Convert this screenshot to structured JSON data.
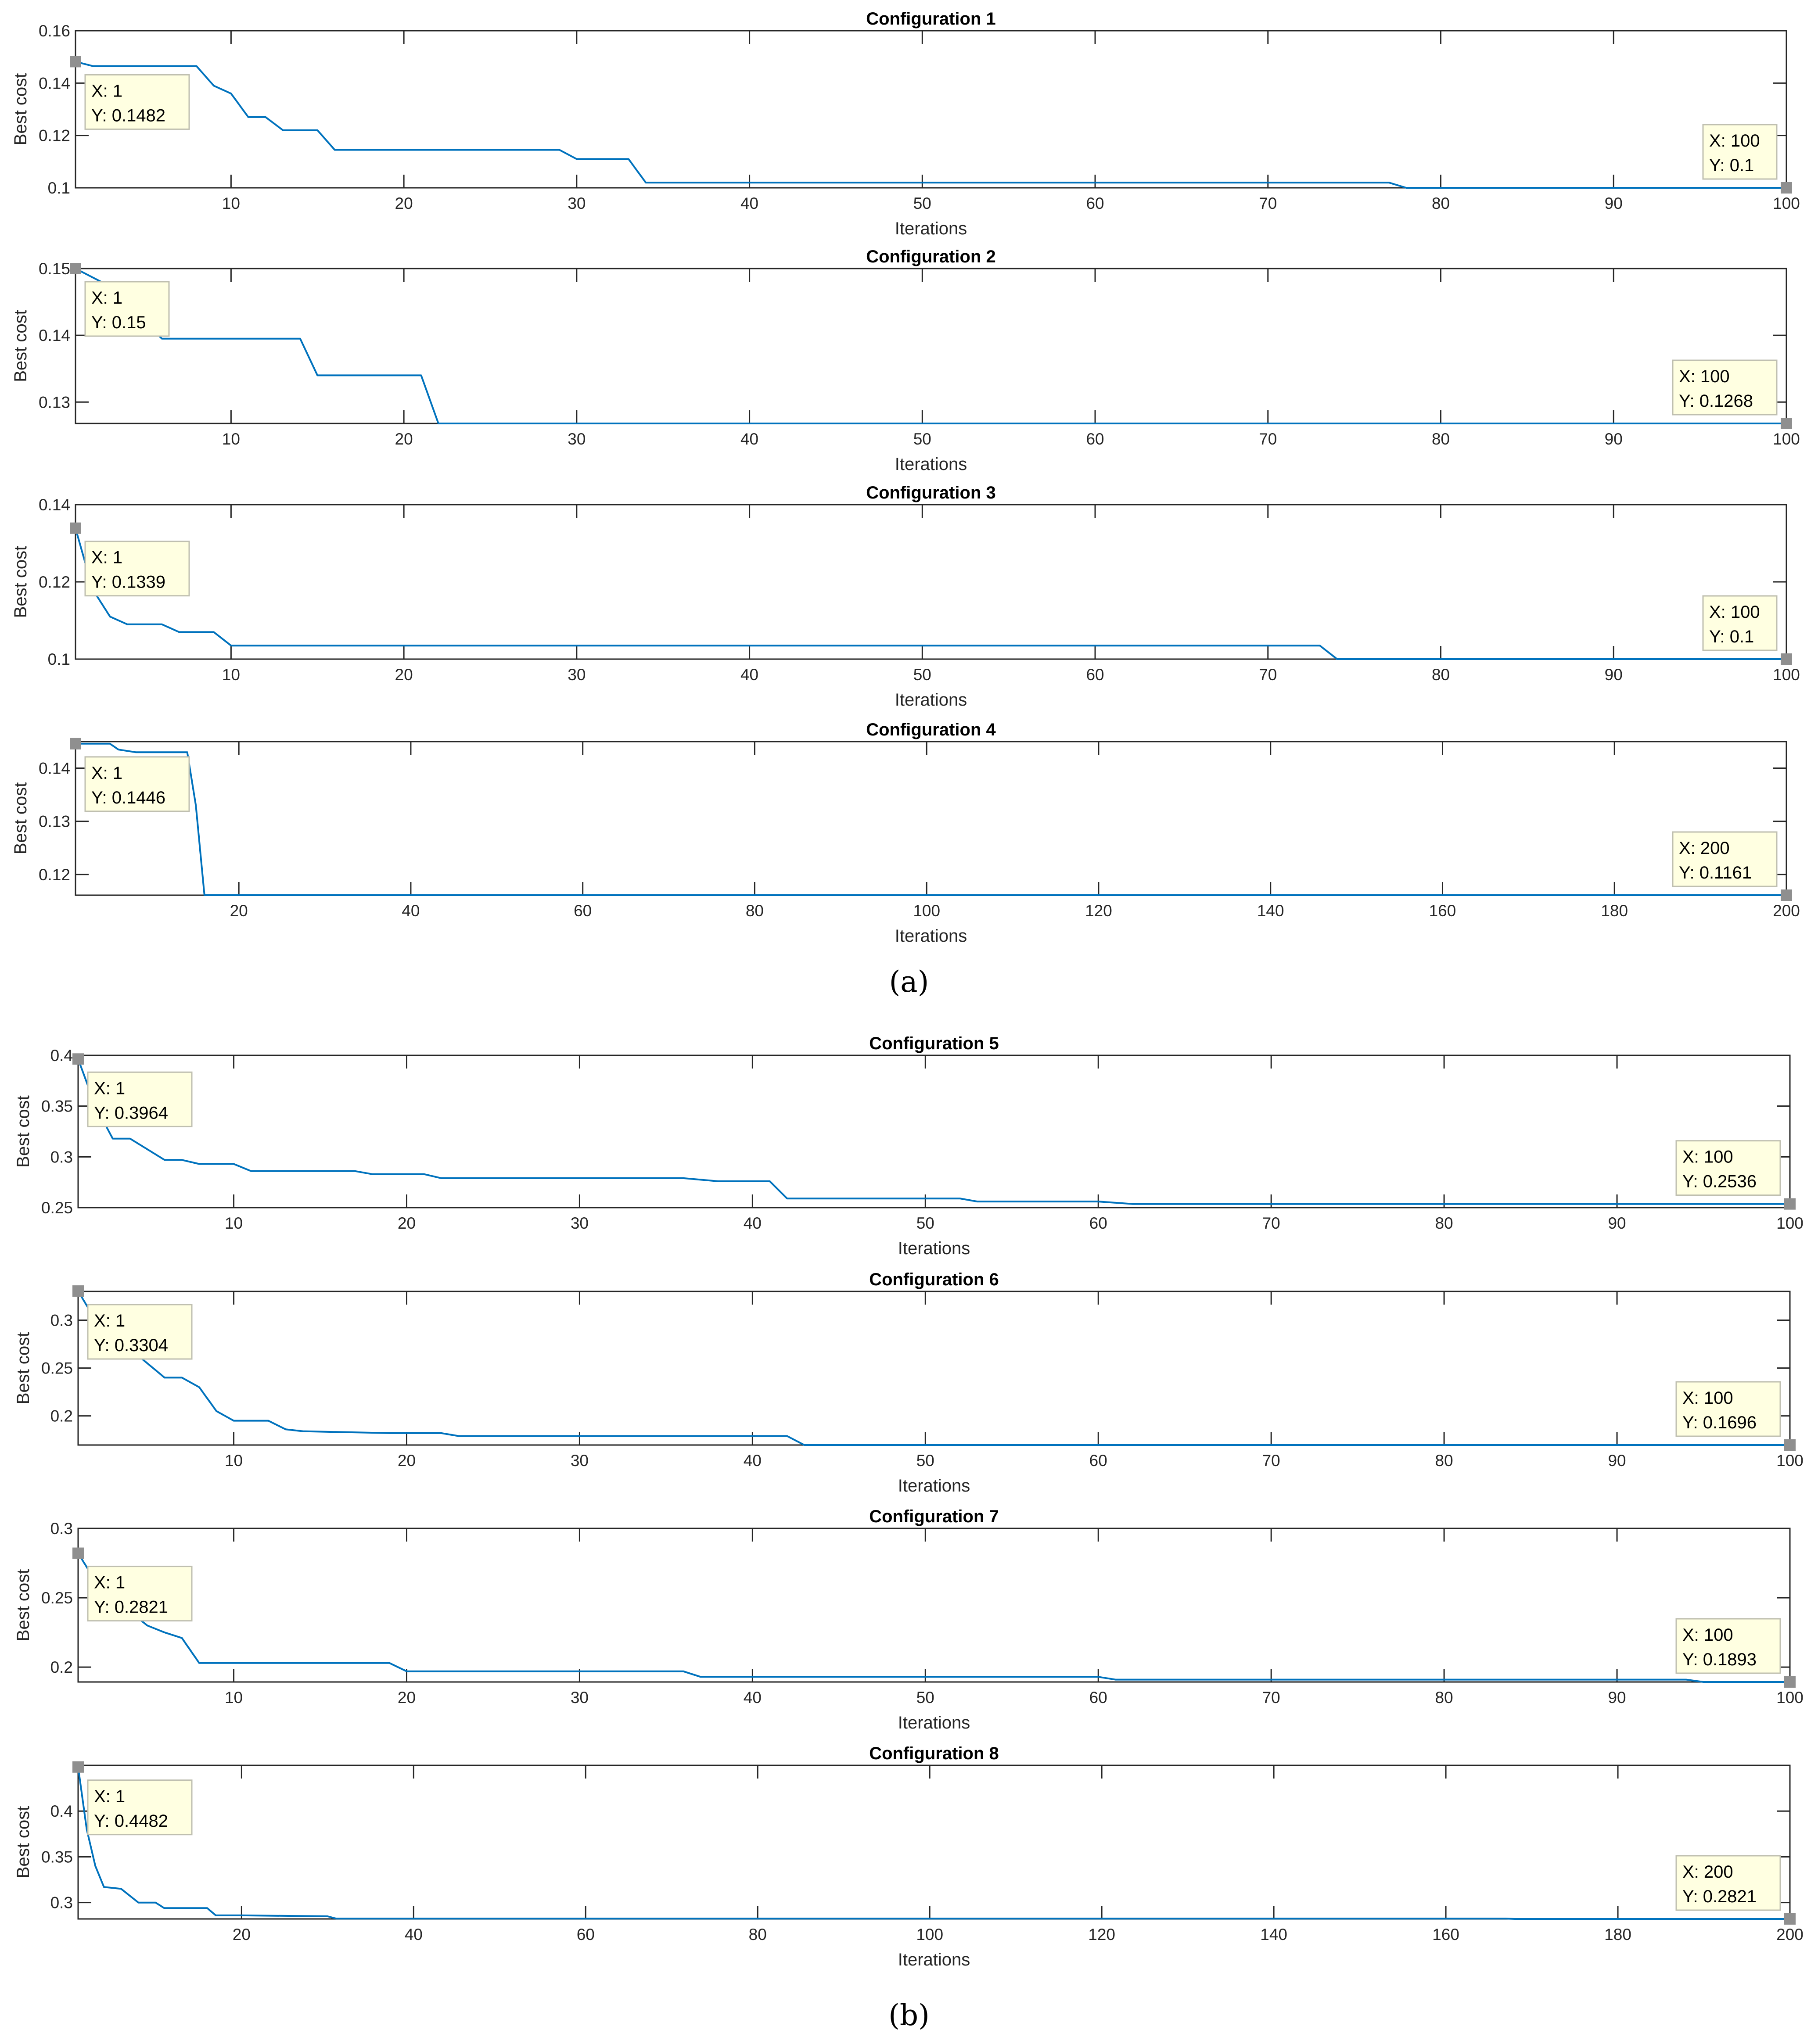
{
  "figure": {
    "panel_captions": [
      "(a)",
      "(b)"
    ]
  },
  "colors": {
    "line": "#0072BD",
    "grid": "#262626",
    "tooltip_fill": "#FFFFE1",
    "tooltip_border": "#BFBFB0",
    "marker": "#8F8F8F"
  },
  "chart_data": [
    {
      "type": "line",
      "title": "Configuration 1",
      "xlabel": "Iterations",
      "ylabel": "Best cost",
      "xlim": [
        1,
        100
      ],
      "ylim": [
        0.1,
        0.16
      ],
      "xticks": [
        10,
        20,
        30,
        40,
        50,
        60,
        70,
        80,
        90,
        100
      ],
      "yticks": [
        0.1,
        0.12,
        0.14,
        0.16
      ],
      "ytick_labels": [
        "0.1",
        "0.12",
        "0.14",
        "0.16"
      ],
      "series": [
        {
          "x": [
            1,
            2,
            8,
            9,
            10,
            11,
            12,
            13,
            14,
            15,
            16,
            29,
            30,
            32,
            33,
            34,
            77,
            78,
            100
          ],
          "y": [
            0.1482,
            0.1465,
            0.1465,
            0.139,
            0.136,
            0.127,
            0.127,
            0.122,
            0.122,
            0.122,
            0.1145,
            0.1145,
            0.111,
            0.111,
            0.111,
            0.102,
            0.102,
            0.1,
            0.1
          ]
        }
      ],
      "datatips": [
        {
          "label_x": "X: 1",
          "label_y": "Y: 0.1482",
          "x": 1,
          "y": 0.1482,
          "side": "right"
        },
        {
          "label_x": "X: 100",
          "label_y": "Y: 0.1",
          "x": 100,
          "y": 0.1,
          "side": "left"
        }
      ]
    },
    {
      "type": "line",
      "title": "Configuration 2",
      "xlabel": "Iterations",
      "ylabel": "Best cost",
      "xlim": [
        1,
        100
      ],
      "ylim": [
        0.1268,
        0.15
      ],
      "xticks": [
        10,
        20,
        30,
        40,
        50,
        60,
        70,
        80,
        90,
        100
      ],
      "yticks": [
        0.13,
        0.14,
        0.15
      ],
      "ytick_labels": [
        "0.13",
        "0.14",
        "0.15"
      ],
      "series": [
        {
          "x": [
            1,
            4,
            5,
            6,
            14,
            15,
            21,
            22,
            100
          ],
          "y": [
            0.15,
            0.146,
            0.142,
            0.1395,
            0.1395,
            0.134,
            0.134,
            0.1268,
            0.1268
          ]
        }
      ],
      "datatips": [
        {
          "label_x": "X: 1",
          "label_y": "Y: 0.15",
          "x": 1,
          "y": 0.15,
          "side": "right"
        },
        {
          "label_x": "X: 100",
          "label_y": "Y: 0.1268",
          "x": 100,
          "y": 0.1268,
          "side": "left"
        }
      ]
    },
    {
      "type": "line",
      "title": "Configuration 3",
      "xlabel": "Iterations",
      "ylabel": "Best cost",
      "xlim": [
        1,
        100
      ],
      "ylim": [
        0.1,
        0.14
      ],
      "xticks": [
        10,
        20,
        30,
        40,
        50,
        60,
        70,
        80,
        90,
        100
      ],
      "yticks": [
        0.1,
        0.12,
        0.14
      ],
      "ytick_labels": [
        "0.1",
        "0.12",
        "0.14"
      ],
      "series": [
        {
          "x": [
            1,
            2,
            3,
            4,
            6,
            7,
            8,
            9,
            10,
            73,
            74,
            100
          ],
          "y": [
            0.1339,
            0.118,
            0.111,
            0.109,
            0.109,
            0.107,
            0.107,
            0.107,
            0.1035,
            0.1035,
            0.1,
            0.1
          ]
        }
      ],
      "datatips": [
        {
          "label_x": "X: 1",
          "label_y": "Y: 0.1339",
          "x": 1,
          "y": 0.1339,
          "side": "right"
        },
        {
          "label_x": "X: 100",
          "label_y": "Y: 0.1",
          "x": 100,
          "y": 0.1,
          "side": "left"
        }
      ]
    },
    {
      "type": "line",
      "title": "Configuration 4",
      "xlabel": "Iterations",
      "ylabel": "Best cost",
      "xlim": [
        1,
        200
      ],
      "ylim": [
        0.1161,
        0.145
      ],
      "xticks": [
        20,
        40,
        60,
        80,
        100,
        120,
        140,
        160,
        180,
        200
      ],
      "yticks": [
        0.12,
        0.13,
        0.14
      ],
      "ytick_labels": [
        "0.12",
        "0.13",
        "0.14"
      ],
      "series": [
        {
          "x": [
            1,
            5,
            6,
            8,
            13,
            14,
            15,
            16,
            200
          ],
          "y": [
            0.1446,
            0.1446,
            0.1435,
            0.143,
            0.143,
            0.143,
            0.133,
            0.1161,
            0.1161
          ]
        }
      ],
      "datatips": [
        {
          "label_x": "X: 1",
          "label_y": "Y: 0.1446",
          "x": 1,
          "y": 0.1446,
          "side": "right"
        },
        {
          "label_x": "X: 200",
          "label_y": "Y: 0.1161",
          "x": 200,
          "y": 0.1161,
          "side": "left"
        }
      ]
    },
    {
      "type": "line",
      "title": "Configuration 5",
      "xlabel": "Iterations",
      "ylabel": "Best cost",
      "xlim": [
        1,
        100
      ],
      "ylim": [
        0.25,
        0.4
      ],
      "xticks": [
        10,
        20,
        30,
        40,
        50,
        60,
        70,
        80,
        90,
        100
      ],
      "yticks": [
        0.25,
        0.3,
        0.35,
        0.4
      ],
      "ytick_labels": [
        "0.25",
        "0.3",
        "0.35",
        "0.4"
      ],
      "series": [
        {
          "x": [
            1,
            2,
            3,
            4,
            6,
            7,
            8,
            10,
            11,
            17,
            18,
            21,
            22,
            36,
            38,
            41,
            42,
            52,
            53,
            60,
            62,
            100
          ],
          "y": [
            0.3964,
            0.35,
            0.318,
            0.318,
            0.297,
            0.297,
            0.293,
            0.293,
            0.286,
            0.286,
            0.283,
            0.283,
            0.279,
            0.279,
            0.276,
            0.276,
            0.259,
            0.259,
            0.256,
            0.256,
            0.2536,
            0.2536
          ]
        }
      ],
      "datatips": [
        {
          "label_x": "X: 1",
          "label_y": "Y: 0.3964",
          "x": 1,
          "y": 0.3964,
          "side": "right"
        },
        {
          "label_x": "X: 100",
          "label_y": "Y: 0.2536",
          "x": 100,
          "y": 0.2536,
          "side": "left"
        }
      ]
    },
    {
      "type": "line",
      "title": "Configuration 6",
      "xlabel": "Iterations",
      "ylabel": "Best cost",
      "xlim": [
        1,
        100
      ],
      "ylim": [
        0.1696,
        0.33
      ],
      "xticks": [
        10,
        20,
        30,
        40,
        50,
        60,
        70,
        80,
        90,
        100
      ],
      "yticks": [
        0.2,
        0.25,
        0.3
      ],
      "ytick_labels": [
        "0.2",
        "0.25",
        "0.3"
      ],
      "series": [
        {
          "x": [
            1,
            2,
            3,
            4,
            5,
            6,
            7,
            8,
            9,
            10,
            12,
            13,
            14,
            19,
            22,
            23,
            42,
            43,
            100
          ],
          "y": [
            0.3304,
            0.3,
            0.285,
            0.27,
            0.255,
            0.24,
            0.24,
            0.23,
            0.205,
            0.195,
            0.195,
            0.186,
            0.184,
            0.182,
            0.182,
            0.179,
            0.179,
            0.1696,
            0.1696
          ]
        }
      ],
      "datatips": [
        {
          "label_x": "X: 1",
          "label_y": "Y: 0.3304",
          "x": 1,
          "y": 0.3304,
          "side": "right"
        },
        {
          "label_x": "X: 100",
          "label_y": "Y: 0.1696",
          "x": 100,
          "y": 0.1696,
          "side": "left"
        }
      ]
    },
    {
      "type": "line",
      "title": "Configuration 7",
      "xlabel": "Iterations",
      "ylabel": "Best cost",
      "xlim": [
        1,
        100
      ],
      "ylim": [
        0.1893,
        0.3
      ],
      "xticks": [
        10,
        20,
        30,
        40,
        50,
        60,
        70,
        80,
        90,
        100
      ],
      "yticks": [
        0.2,
        0.25,
        0.3
      ],
      "ytick_labels": [
        "0.2",
        "0.25",
        "0.3"
      ],
      "series": [
        {
          "x": [
            1,
            2,
            3,
            4,
            5,
            6,
            7,
            8,
            19,
            20,
            36,
            37,
            60,
            61,
            94,
            95,
            100
          ],
          "y": [
            0.2821,
            0.262,
            0.25,
            0.24,
            0.23,
            0.225,
            0.221,
            0.203,
            0.203,
            0.197,
            0.197,
            0.193,
            0.193,
            0.191,
            0.191,
            0.1893,
            0.1893
          ]
        }
      ],
      "datatips": [
        {
          "label_x": "X: 1",
          "label_y": "Y: 0.2821",
          "x": 1,
          "y": 0.2821,
          "side": "right"
        },
        {
          "label_x": "X: 100",
          "label_y": "Y: 0.1893",
          "x": 100,
          "y": 0.1893,
          "side": "left"
        }
      ]
    },
    {
      "type": "line",
      "title": "Configuration 8",
      "xlabel": "Iterations",
      "ylabel": "Best cost",
      "xlim": [
        1,
        200
      ],
      "ylim": [
        0.2821,
        0.45
      ],
      "xticks": [
        20,
        40,
        60,
        80,
        100,
        120,
        140,
        160,
        180,
        200
      ],
      "yticks": [
        0.3,
        0.35,
        0.4
      ],
      "ytick_labels": [
        "0.3",
        "0.35",
        "0.4"
      ],
      "series": [
        {
          "x": [
            1,
            2,
            3,
            4,
            6,
            8,
            10,
            11,
            16,
            17,
            20,
            30,
            31,
            167,
            168,
            200
          ],
          "y": [
            0.4482,
            0.38,
            0.34,
            0.317,
            0.315,
            0.3,
            0.3,
            0.294,
            0.294,
            0.286,
            0.286,
            0.285,
            0.2825,
            0.2825,
            0.2821,
            0.2821
          ]
        }
      ],
      "datatips": [
        {
          "label_x": "X: 1",
          "label_y": "Y: 0.4482",
          "x": 1,
          "y": 0.4482,
          "side": "right"
        },
        {
          "label_x": "X: 200",
          "label_y": "Y: 0.2821",
          "x": 200,
          "y": 0.2821,
          "side": "left"
        }
      ]
    }
  ]
}
